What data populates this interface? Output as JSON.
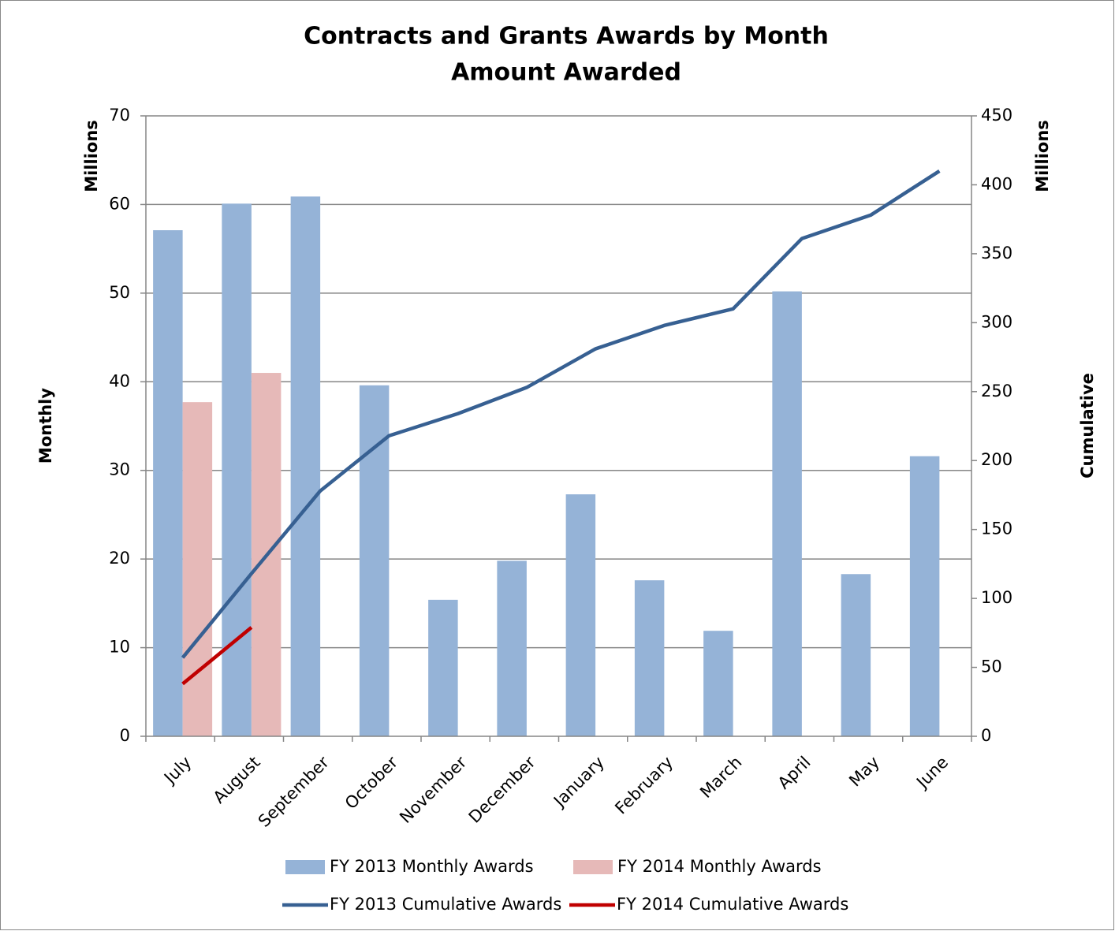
{
  "chart_data": {
    "type": "bar",
    "title": [
      "Contracts and Grants Awards by Month",
      "Amount Awarded"
    ],
    "y_label": "Monthly",
    "y_unit": "Millions",
    "y2_label": "Cumulative",
    "y2_unit": "Millions",
    "categories": [
      "July",
      "August",
      "September",
      "October",
      "November",
      "December",
      "January",
      "February",
      "March",
      "April",
      "May",
      "June"
    ],
    "series": [
      {
        "name": "FY 2013 Monthly Awards",
        "type": "bar",
        "axis": "y",
        "color": "#95b3d7",
        "values": [
          57.1,
          60.1,
          60.9,
          39.6,
          15.4,
          19.8,
          27.3,
          17.6,
          11.9,
          50.2,
          18.3,
          31.6
        ]
      },
      {
        "name": "FY 2014 Monthly Awards",
        "type": "bar",
        "axis": "y",
        "color": "#e6b9b8",
        "values": [
          37.7,
          41.0,
          null,
          null,
          null,
          null,
          null,
          null,
          null,
          null,
          null,
          null
        ]
      },
      {
        "name": "FY 2013 Cumulative Awards",
        "type": "line",
        "axis": "y2",
        "color": "#376092",
        "values": [
          57,
          118,
          178,
          218,
          234,
          253,
          281,
          298,
          310,
          361,
          378,
          410
        ]
      },
      {
        "name": "FY 2014 Cumulative Awards",
        "type": "line",
        "axis": "y2",
        "color": "#c00000",
        "values": [
          38,
          79,
          null,
          null,
          null,
          null,
          null,
          null,
          null,
          null,
          null,
          null
        ]
      }
    ],
    "ylim": [
      0,
      70
    ],
    "yticks": [
      0,
      10,
      20,
      30,
      40,
      50,
      60,
      70
    ],
    "y2lim": [
      0,
      450
    ],
    "y2ticks": [
      0,
      50,
      100,
      150,
      200,
      250,
      300,
      350,
      400,
      450
    ],
    "grid": true
  }
}
